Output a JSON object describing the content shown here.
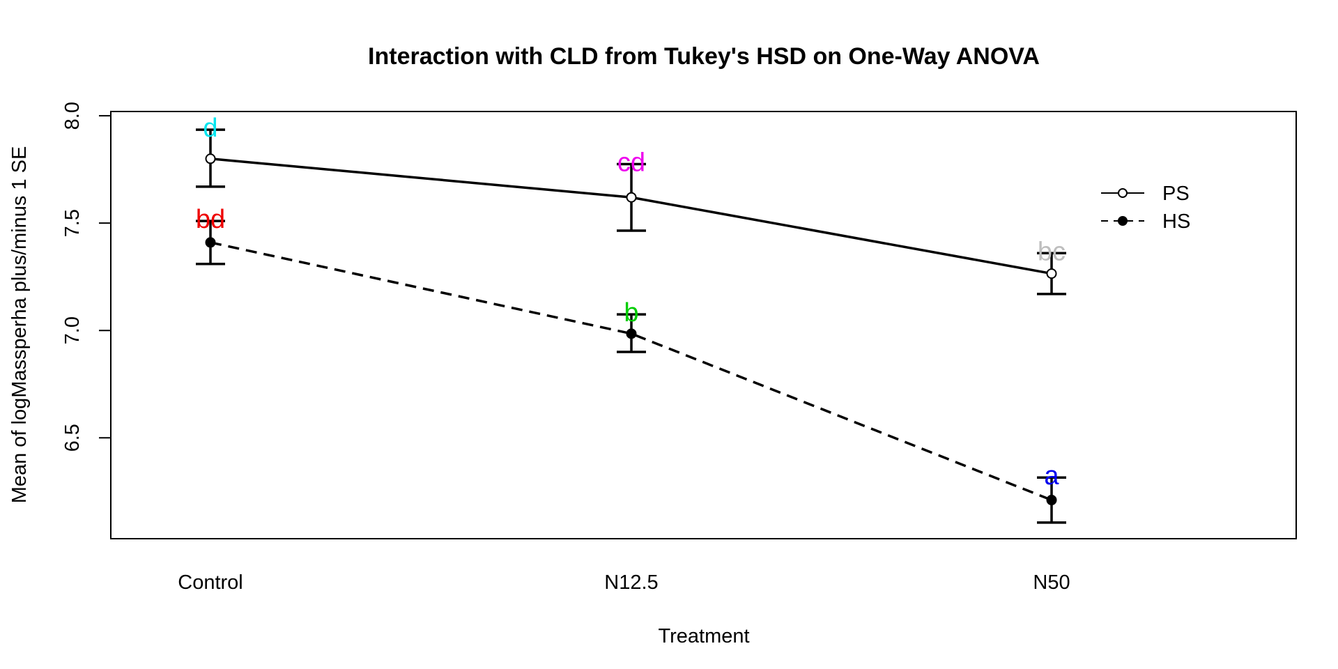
{
  "chart_data": {
    "type": "line",
    "title": "Interaction with CLD from Tukey's HSD on One-Way ANOVA",
    "xlabel": "Treatment",
    "ylabel": "Mean of  logMassperha plus/minus 1 SE",
    "categories": [
      "Control",
      "N12.5",
      "N50"
    ],
    "ylim": [
      6.03,
      8.02
    ],
    "yticks": [
      6.5,
      7.0,
      7.5,
      8.0
    ],
    "ytick_labels": [
      "6.5",
      "7.0",
      "7.5",
      "8.0"
    ],
    "grid": false,
    "legend_position": "top-right",
    "series": [
      {
        "name": "PS",
        "line_style": "solid",
        "marker": "open-circle",
        "values": [
          7.8,
          7.62,
          7.265
        ],
        "lower": [
          7.67,
          7.465,
          7.17
        ],
        "upper": [
          7.935,
          7.775,
          7.36
        ],
        "letters": [
          "d",
          "cd",
          "bc"
        ],
        "letter_colors": [
          "#00e5ee",
          "#ee00ee",
          "#bebebe"
        ]
      },
      {
        "name": "HS",
        "line_style": "dashed",
        "marker": "filled-circle",
        "values": [
          7.41,
          6.985,
          6.21
        ],
        "lower": [
          7.31,
          6.9,
          6.105
        ],
        "upper": [
          7.51,
          7.075,
          6.315
        ],
        "letters": [
          "bd",
          "b",
          "a"
        ],
        "letter_colors": [
          "#ee0000",
          "#00cd00",
          "#0000ee"
        ]
      }
    ]
  }
}
